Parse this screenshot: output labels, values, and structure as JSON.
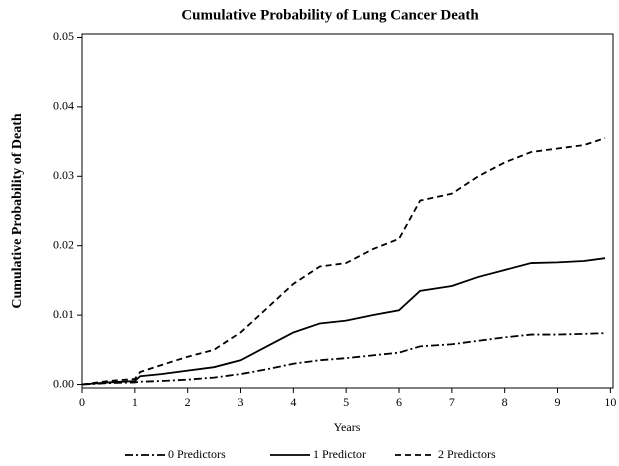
{
  "chart_data": {
    "type": "line",
    "title": "Cumulative Probability of Lung Cancer Death",
    "x_label": "Years",
    "y_label": "Cumulative Probability of Death",
    "x": [
      0,
      0.5,
      1,
      1.1,
      1.5,
      2,
      2.5,
      3,
      3.5,
      4,
      4.5,
      5,
      5.5,
      6,
      6.4,
      7,
      7.5,
      8,
      8.5,
      9,
      9.5,
      9.9
    ],
    "series": [
      {
        "name": "0 Predictors",
        "color": "#000000",
        "dash": "8,3,2,3",
        "values": [
          0,
          0.0002,
          0.0003,
          0.0004,
          0.0005,
          0.0007,
          0.001,
          0.0015,
          0.0022,
          0.003,
          0.0035,
          0.0038,
          0.0042,
          0.0046,
          0.0055,
          0.0058,
          0.0063,
          0.0068,
          0.0072,
          0.0072,
          0.0073,
          0.0074
        ]
      },
      {
        "name": "1 Predictor",
        "color": "#000000",
        "dash": "none",
        "values": [
          0,
          0.0003,
          0.0005,
          0.0012,
          0.0015,
          0.002,
          0.0025,
          0.0035,
          0.0055,
          0.0075,
          0.0088,
          0.0092,
          0.01,
          0.0107,
          0.0135,
          0.0142,
          0.0155,
          0.0165,
          0.0175,
          0.0176,
          0.0178,
          0.0182
        ]
      },
      {
        "name": "2 Predictors",
        "color": "#000000",
        "dash": "6,4",
        "values": [
          0,
          0.0005,
          0.0008,
          0.0018,
          0.0028,
          0.004,
          0.005,
          0.0075,
          0.011,
          0.0145,
          0.017,
          0.0175,
          0.0195,
          0.021,
          0.0265,
          0.0275,
          0.03,
          0.032,
          0.0335,
          0.034,
          0.0345,
          0.0355
        ]
      }
    ],
    "xlim": [
      0,
      10.05
    ],
    "xticks": [
      0,
      1,
      2,
      3,
      4,
      5,
      6,
      7,
      8,
      9,
      10
    ],
    "ylim": [
      -0.0005,
      0.0505
    ],
    "yticks": [
      {
        "value": 0,
        "label": "0.00"
      },
      {
        "value": 0.01,
        "label": "0.01"
      },
      {
        "value": 0.02,
        "label": "0.02"
      },
      {
        "value": 0.03,
        "label": "0.03"
      },
      {
        "value": 0.04,
        "label": "0.04"
      },
      {
        "value": 0.05,
        "label": "0.05"
      }
    ],
    "grid": false,
    "legend": "bottom"
  }
}
